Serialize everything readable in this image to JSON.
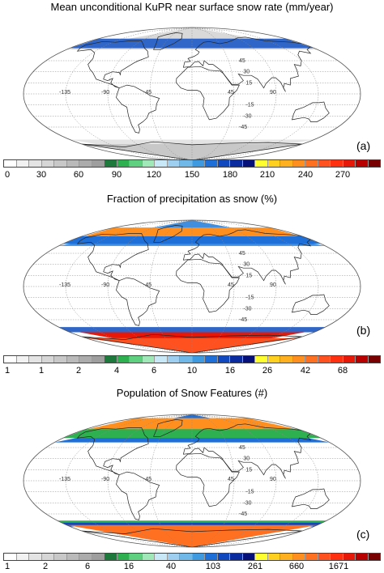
{
  "panels": [
    {
      "id": "a",
      "title": "Mean unconditional KuPR near surface snow rate (mm/year)",
      "label": "(a)",
      "colorbar_ticks": [
        "0",
        "30",
        "60",
        "90",
        "120",
        "150",
        "180",
        "210",
        "240",
        "270"
      ],
      "lon_labels": [
        "-135",
        "-90",
        "-45",
        "45",
        "90"
      ],
      "lat_labels": [
        "45",
        "30",
        "15",
        "-15",
        "-30",
        "-45"
      ]
    },
    {
      "id": "b",
      "title": "Fraction of precipitation as snow  (%)",
      "label": "(b)",
      "colorbar_ticks": [
        "1",
        "1",
        "2",
        "4",
        "6",
        "10",
        "16",
        "26",
        "42",
        "68"
      ],
      "lon_labels": [
        "-135",
        "-90",
        "-45",
        "45",
        "90"
      ],
      "lat_labels": [
        "45",
        "30",
        "15",
        "-15",
        "-30",
        "-45"
      ]
    },
    {
      "id": "c",
      "title": "Population of Snow Features (#)",
      "label": "(c)",
      "colorbar_ticks": [
        "1",
        "2",
        "6",
        "16",
        "40",
        "103",
        "261",
        "660",
        "1671"
      ],
      "lon_labels": [
        "-135",
        "-90",
        "-45",
        "45",
        "90"
      ],
      "lat_labels": [
        "45",
        "30",
        "15",
        "-15",
        "-30",
        "-45"
      ]
    }
  ],
  "colorbar_colors": [
    "#ffffff",
    "#f2f2f2",
    "#e4e4e4",
    "#d6d6d6",
    "#c8c8c8",
    "#bababa",
    "#acacac",
    "#9e9e9e",
    "#1e7a3c",
    "#2fb050",
    "#5fd080",
    "#a0e8b8",
    "#c8e8f8",
    "#9fcff0",
    "#6fb8e8",
    "#3f9ae0",
    "#1f6fd8",
    "#1048c0",
    "#0a2aa0",
    "#06107a",
    "#ffff30",
    "#ffd020",
    "#ffb020",
    "#ff9020",
    "#ff7020",
    "#ff5020",
    "#ff3010",
    "#e81808",
    "#b80000",
    "#780000"
  ]
}
